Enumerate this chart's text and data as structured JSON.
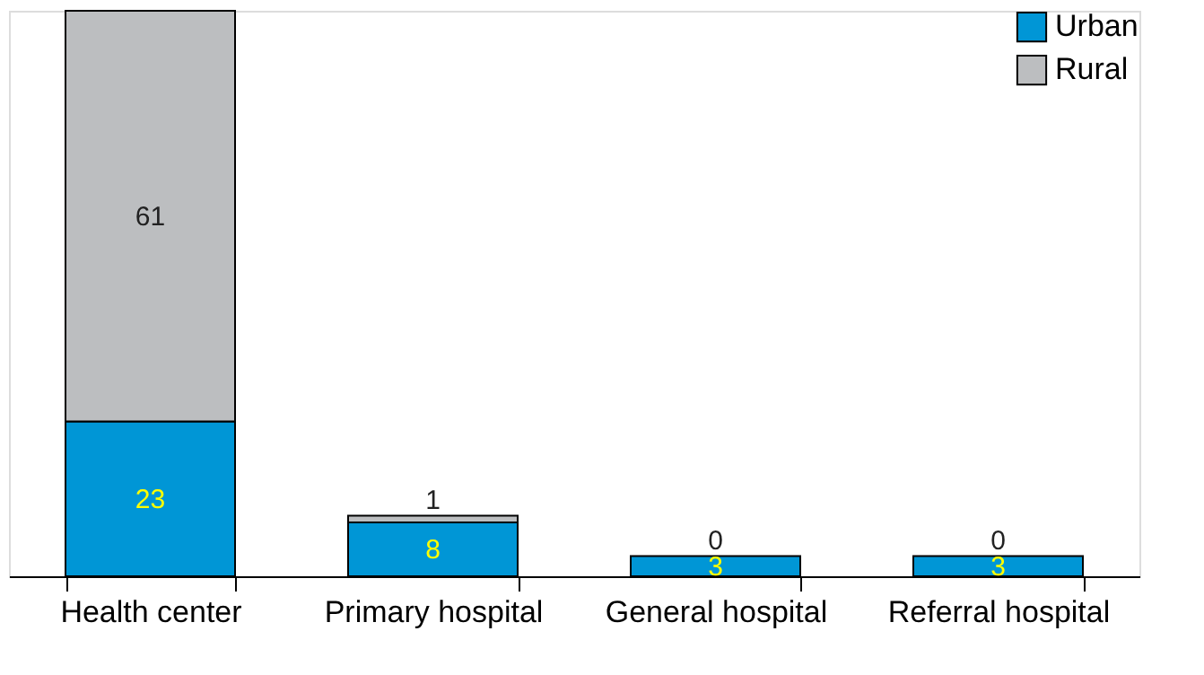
{
  "chart_data": {
    "type": "bar",
    "stacked": true,
    "data_labels": true,
    "legend": "top right",
    "grid": false,
    "categories": [
      "Health center",
      "Primary hospital",
      "General hospital",
      "Referral hospital"
    ],
    "series": [
      {
        "name": "Urban",
        "color": "#0096d6",
        "values": [
          23,
          8,
          3,
          3
        ]
      },
      {
        "name": "Rural",
        "color": "#bcbec0",
        "values": [
          61,
          1,
          0,
          0
        ]
      }
    ]
  }
}
